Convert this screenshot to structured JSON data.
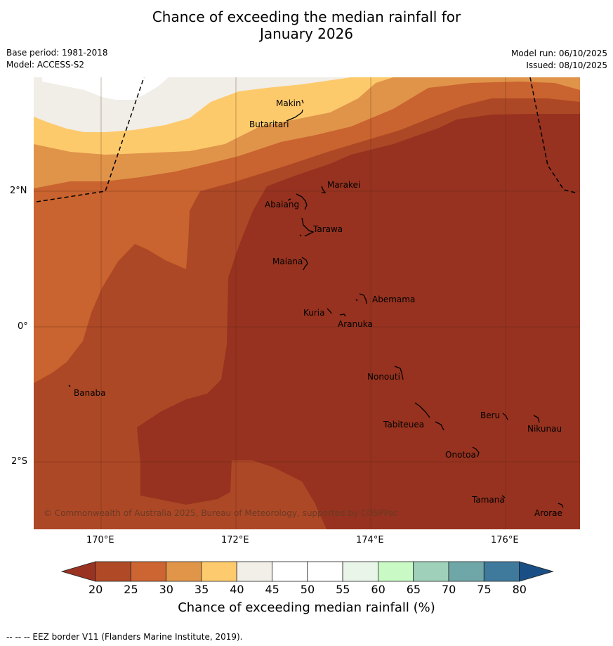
{
  "title_line1": "Chance of exceeding the median rainfall for",
  "title_line2": "January 2026",
  "meta_left": {
    "base_period": "Base period: 1981-2018",
    "model": "Model: ACCESS-S2"
  },
  "meta_right": {
    "model_run": "Model run: 06/10/2025",
    "issued": "Issued: 08/10/2025"
  },
  "axes": {
    "x_ticks": [
      "170°E",
      "172°E",
      "174°E",
      "176°E"
    ],
    "y_ticks": [
      "2°N",
      "0°",
      "2°S"
    ]
  },
  "places": {
    "makin": "Makin",
    "butaritari": "Butaritari",
    "marakei": "Marakei",
    "abaiang": "Abaiang",
    "tarawa": "Tarawa",
    "maiana": "Maiana",
    "abemama": "Abemama",
    "kuria": "Kuria",
    "aranuka": "Aranuka",
    "nonouti": "Nonouti",
    "banaba": "Banaba",
    "beru": "Beru",
    "tabiteuea": "Tabiteuea",
    "nikunau": "Nikunau",
    "onotoa": "Onotoa",
    "tamana": "Tamana",
    "arorae": "Arorae"
  },
  "copyright": "© Commonwealth of Australia 2025, Bureau of Meteorology, supported by COSPPac",
  "colorbar": {
    "ticks": [
      "20",
      "25",
      "30",
      "35",
      "40",
      "45",
      "50",
      "55",
      "60",
      "65",
      "70",
      "75",
      "80"
    ],
    "colors": [
      "#9a3222",
      "#b04a26",
      "#cc6532",
      "#e09548",
      "#fdcb6e",
      "#f2eee8",
      "#ffffff",
      "#ffffff",
      "#eaf5ea",
      "#c9f9c5",
      "#9fd0b9",
      "#6fa6a7",
      "#3f7a9c",
      "#1a4f85"
    ],
    "title": "Chance of exceeding median rainfall (%)"
  },
  "footnote": "--  --  -- EEZ border V11 (Flanders Marine Institute, 2019)."
}
